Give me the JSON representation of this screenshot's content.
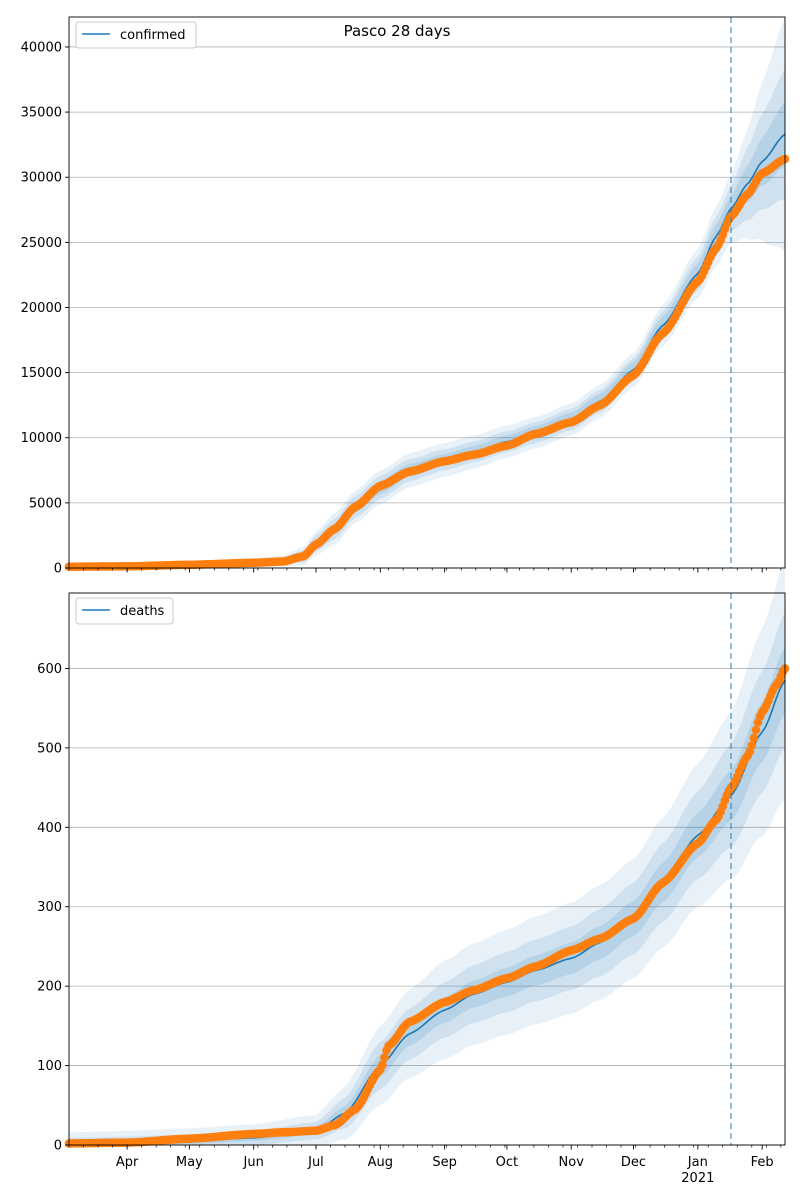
{
  "chart_data": [
    {
      "type": "line",
      "title": "Pasco 28 days",
      "xlabel": "",
      "ylabel": "",
      "legend": {
        "label": "confirmed",
        "placement": "top-left"
      },
      "grid": "horizontal",
      "colors": {
        "model": "#1f77b4",
        "observed": "#ff7f0e",
        "band": "#1f77b4",
        "divider": "#1f77b4"
      },
      "xlim": [
        "2020-03-04",
        "2021-02-12"
      ],
      "ylim": [
        0,
        42300
      ],
      "yticks": [
        0,
        5000,
        10000,
        15000,
        20000,
        25000,
        30000,
        35000,
        40000
      ],
      "ytick_labels": [
        "0",
        "5000",
        "10000",
        "15000",
        "20000",
        "25000",
        "30000",
        "35000",
        "40000"
      ],
      "forecast_start": "2021-01-17",
      "model_curve": {
        "x": [
          "2020-03-04",
          "2020-04-01",
          "2020-05-01",
          "2020-06-01",
          "2020-06-15",
          "2020-06-25",
          "2020-07-01",
          "2020-07-10",
          "2020-07-20",
          "2020-08-01",
          "2020-08-15",
          "2020-09-01",
          "2020-09-15",
          "2020-10-01",
          "2020-10-15",
          "2020-11-01",
          "2020-11-15",
          "2020-12-01",
          "2020-12-15",
          "2021-01-01",
          "2021-01-10",
          "2021-01-17",
          "2021-01-25",
          "2021-02-01",
          "2021-02-12"
        ],
        "y": [
          100,
          130,
          250,
          400,
          550,
          900,
          1900,
          3000,
          4700,
          6200,
          7500,
          8300,
          8900,
          9700,
          10400,
          11400,
          12800,
          15200,
          18600,
          22600,
          25500,
          27600,
          29500,
          31200,
          33300
        ]
      },
      "band_half_widths": {
        "x": [
          "2020-03-04",
          "2020-06-15",
          "2020-07-10",
          "2020-08-01",
          "2020-09-01",
          "2020-10-15",
          "2020-12-01",
          "2021-01-01",
          "2021-01-17",
          "2021-01-25",
          "2021-02-12"
        ],
        "inner": [
          50,
          150,
          400,
          500,
          450,
          500,
          600,
          800,
          1000,
          1400,
          2500
        ],
        "mid": [
          80,
          250,
          800,
          900,
          800,
          800,
          900,
          1300,
          1700,
          2800,
          5000
        ],
        "outer": [
          120,
          400,
          1200,
          1300,
          1300,
          1200,
          1300,
          1900,
          2600,
          4200,
          9000
        ]
      },
      "observed": {
        "x": [
          "2020-03-04",
          "2020-04-01",
          "2020-05-01",
          "2020-06-01",
          "2020-06-15",
          "2020-06-25",
          "2020-07-01",
          "2020-07-10",
          "2020-07-20",
          "2020-08-01",
          "2020-08-15",
          "2020-09-01",
          "2020-09-15",
          "2020-10-01",
          "2020-10-15",
          "2020-11-01",
          "2020-11-15",
          "2020-12-01",
          "2020-12-15",
          "2021-01-01",
          "2021-01-10",
          "2021-01-17",
          "2021-01-25",
          "2021-02-01",
          "2021-02-12"
        ],
        "y": [
          100,
          130,
          250,
          400,
          500,
          900,
          1800,
          3000,
          4700,
          6300,
          7400,
          8200,
          8700,
          9400,
          10300,
          11200,
          12500,
          14800,
          18000,
          22000,
          24600,
          27000,
          28700,
          30300,
          31400
        ]
      }
    },
    {
      "type": "line",
      "title": "",
      "xlabel": "",
      "ylabel": "",
      "legend": {
        "label": "deaths",
        "placement": "top-left"
      },
      "grid": "horizontal",
      "colors": {
        "model": "#1f77b4",
        "observed": "#ff7f0e",
        "band": "#1f77b4",
        "divider": "#1f77b4"
      },
      "xlim": [
        "2020-03-04",
        "2021-02-12"
      ],
      "ylim": [
        0,
        695
      ],
      "yticks": [
        0,
        100,
        200,
        300,
        400,
        500,
        600
      ],
      "ytick_labels": [
        "0",
        "100",
        "200",
        "300",
        "400",
        "500",
        "600"
      ],
      "xtick_labels": [
        {
          "date": "2020-04-01",
          "label": "Apr"
        },
        {
          "date": "2020-05-01",
          "label": "May"
        },
        {
          "date": "2020-06-01",
          "label": "Jun"
        },
        {
          "date": "2020-07-01",
          "label": "Jul"
        },
        {
          "date": "2020-08-01",
          "label": "Aug"
        },
        {
          "date": "2020-09-01",
          "label": "Sep"
        },
        {
          "date": "2020-10-01",
          "label": "Oct"
        },
        {
          "date": "2020-11-01",
          "label": "Nov"
        },
        {
          "date": "2020-12-01",
          "label": "Dec"
        },
        {
          "date": "2021-01-01",
          "label": "Jan"
        },
        {
          "date": "2021-02-01",
          "label": "Feb"
        }
      ],
      "year_label": {
        "date": "2021-01-01",
        "label": "2021"
      },
      "forecast_start": "2021-01-17",
      "model_curve": {
        "x": [
          "2020-03-04",
          "2020-04-01",
          "2020-05-01",
          "2020-06-01",
          "2020-07-01",
          "2020-07-15",
          "2020-08-01",
          "2020-08-15",
          "2020-09-01",
          "2020-09-15",
          "2020-10-01",
          "2020-10-15",
          "2020-11-01",
          "2020-11-15",
          "2020-12-01",
          "2020-12-15",
          "2021-01-01",
          "2021-01-17",
          "2021-02-01",
          "2021-02-12"
        ],
        "y": [
          2,
          3,
          5,
          9,
          18,
          40,
          100,
          140,
          170,
          190,
          205,
          220,
          235,
          255,
          285,
          330,
          390,
          440,
          520,
          585
        ]
      },
      "band_half_widths": {
        "x": [
          "2020-03-04",
          "2020-06-01",
          "2020-07-01",
          "2020-08-01",
          "2020-09-01",
          "2020-10-01",
          "2020-11-01",
          "2020-12-01",
          "2021-01-01",
          "2021-01-17",
          "2021-02-12"
        ],
        "inner": [
          3,
          4,
          5,
          14,
          16,
          18,
          20,
          22,
          28,
          32,
          42
        ],
        "mid": [
          7,
          9,
          11,
          30,
          35,
          38,
          40,
          45,
          55,
          65,
          85
        ],
        "outer": [
          14,
          17,
          20,
          50,
          62,
          66,
          70,
          75,
          90,
          105,
          150
        ]
      },
      "observed": {
        "x": [
          "2020-03-04",
          "2020-04-01",
          "2020-05-01",
          "2020-06-01",
          "2020-06-15",
          "2020-07-01",
          "2020-07-10",
          "2020-07-20",
          "2020-08-01",
          "2020-08-05",
          "2020-08-15",
          "2020-09-01",
          "2020-09-15",
          "2020-10-01",
          "2020-10-15",
          "2020-11-01",
          "2020-11-15",
          "2020-12-01",
          "2020-12-15",
          "2021-01-01",
          "2021-01-10",
          "2021-01-17",
          "2021-01-25",
          "2021-02-01",
          "2021-02-08",
          "2021-02-12"
        ],
        "y": [
          2,
          3,
          8,
          14,
          16,
          18,
          25,
          45,
          95,
          125,
          155,
          180,
          195,
          210,
          225,
          245,
          260,
          285,
          330,
          380,
          410,
          450,
          490,
          545,
          580,
          600
        ]
      }
    }
  ]
}
